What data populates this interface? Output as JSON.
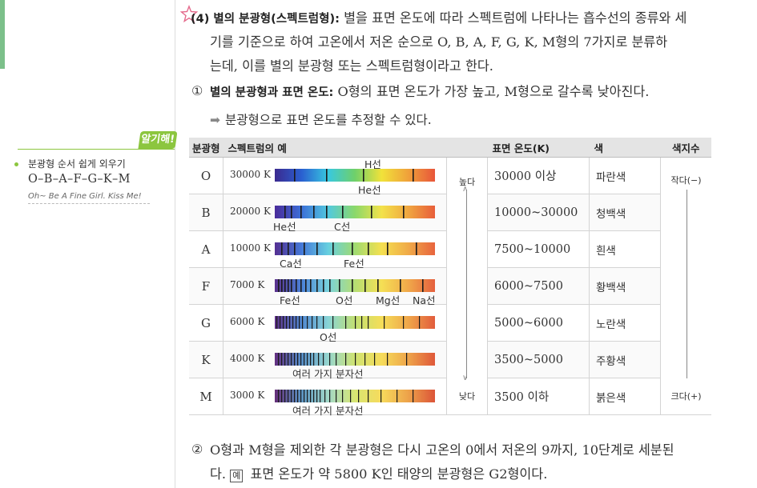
{
  "sidebar": {
    "tip_badge": "알기해!",
    "tip_title": "분광형 순서 쉽게 외우기",
    "tip_sequence": "O–B–A–F–G–K–M",
    "tip_phrase": "Oh~ Be A Fine Girl. Kiss Me!"
  },
  "section": {
    "heading": "(4) 별의 분광형(스펙트럼형):",
    "line1": "별을 표면 온도에 따라 스펙트럼에 나타나는 흡수선의 종류와 세",
    "line2": "기를 기준으로 하여 고온에서 저온 순으로 O, B, A, F, G, K, M형의 7가지로 분류하",
    "line3": "는데, 이를 별의 분광형 또는 스펙트럼형이라고 한다."
  },
  "point1": {
    "num": "①",
    "title": "별의 분광형과 표면 온도:",
    "text": "O형의 표면 온도가 가장 높고, M형으로 갈수록 낮아진다.",
    "note": "분광형으로 표면 온도를 추정할 수 있다."
  },
  "table": {
    "headers": [
      "분광형",
      "스펙트럼의 예",
      "표면 온도(K)",
      "색",
      "색지수"
    ],
    "dir_high": "높다",
    "dir_low": "낮다",
    "idx_low": "작다(−)",
    "idx_high": "크다(+)",
    "rows": [
      {
        "cls": "O",
        "kelvin": "30000 K",
        "temp": "30000 이상",
        "color": "파란색",
        "labels": [
          "H선",
          "He선"
        ]
      },
      {
        "cls": "B",
        "kelvin": "20000 K",
        "temp": "10000~30000",
        "color": "청백색",
        "labels": [
          "He선",
          "C선"
        ]
      },
      {
        "cls": "A",
        "kelvin": "10000 K",
        "temp": "7500~10000",
        "color": "흰색",
        "labels": [
          "Ca선",
          "Fe선"
        ]
      },
      {
        "cls": "F",
        "kelvin": "7000 K",
        "temp": "6000~7500",
        "color": "황백색",
        "labels": [
          "Fe선",
          "O선",
          "Mg선",
          "Na선"
        ]
      },
      {
        "cls": "G",
        "kelvin": "6000 K",
        "temp": "5000~6000",
        "color": "노란색",
        "labels": [
          "O선"
        ]
      },
      {
        "cls": "K",
        "kelvin": "4000 K",
        "temp": "3500~5000",
        "color": "주황색",
        "labels": [
          "여러 가지 분자선"
        ]
      },
      {
        "cls": "M",
        "kelvin": "3000 K",
        "temp": "3500 이하",
        "color": "붉은색",
        "labels": [
          "여러 가지 분자선"
        ]
      }
    ]
  },
  "point2": {
    "num": "②",
    "line1": "O형과 M형을 제외한 각 분광형은 다시 고온의 0에서 저온의 9까지, 10단계로 세분된",
    "line2_pre": "다.",
    "example_tag": "예",
    "line2_post": "표면 온도가 약 5800 K인 태양의 분광형은 G2형이다."
  },
  "colors": {
    "accent_green": "#8cc63f",
    "header_gray": "#e4e4e4"
  }
}
